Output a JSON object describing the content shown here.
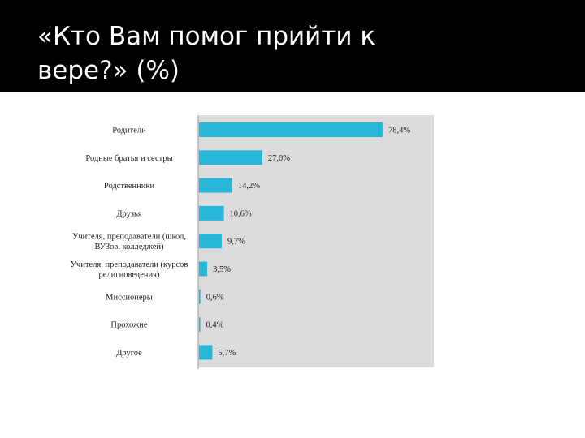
{
  "slide": {
    "title_line1": "«Кто Вам помог прийти к",
    "title_line2": "вере?» (%)"
  },
  "colors": {
    "bar": "#29b6d8",
    "plot_bg": "#dcdcdc",
    "band": "#000000"
  },
  "chart_data": {
    "type": "bar",
    "orientation": "horizontal",
    "title": "",
    "xlabel": "",
    "ylabel": "",
    "xlim": [
      0,
      100
    ],
    "grid": false,
    "categories": [
      [
        "Родители"
      ],
      [
        "Родные братья и сестры"
      ],
      [
        "Родственники"
      ],
      [
        "Друзья"
      ],
      [
        "Учителя, преподаватели (школ,",
        "ВУЗов, колледжей)"
      ],
      [
        "Учителя, преподаватели (курсов",
        "религиоведения)"
      ],
      [
        "Миссионеры"
      ],
      [
        "Прохожие"
      ],
      [
        "Другое"
      ]
    ],
    "values": [
      78.4,
      27.0,
      14.2,
      10.6,
      9.7,
      3.5,
      0.6,
      0.4,
      5.7
    ],
    "value_labels": [
      "78,4%",
      "27,0%",
      "14,2%",
      "10,6%",
      "9,7%",
      "3,5%",
      "0,6%",
      "0,4%",
      "5,7%"
    ]
  }
}
